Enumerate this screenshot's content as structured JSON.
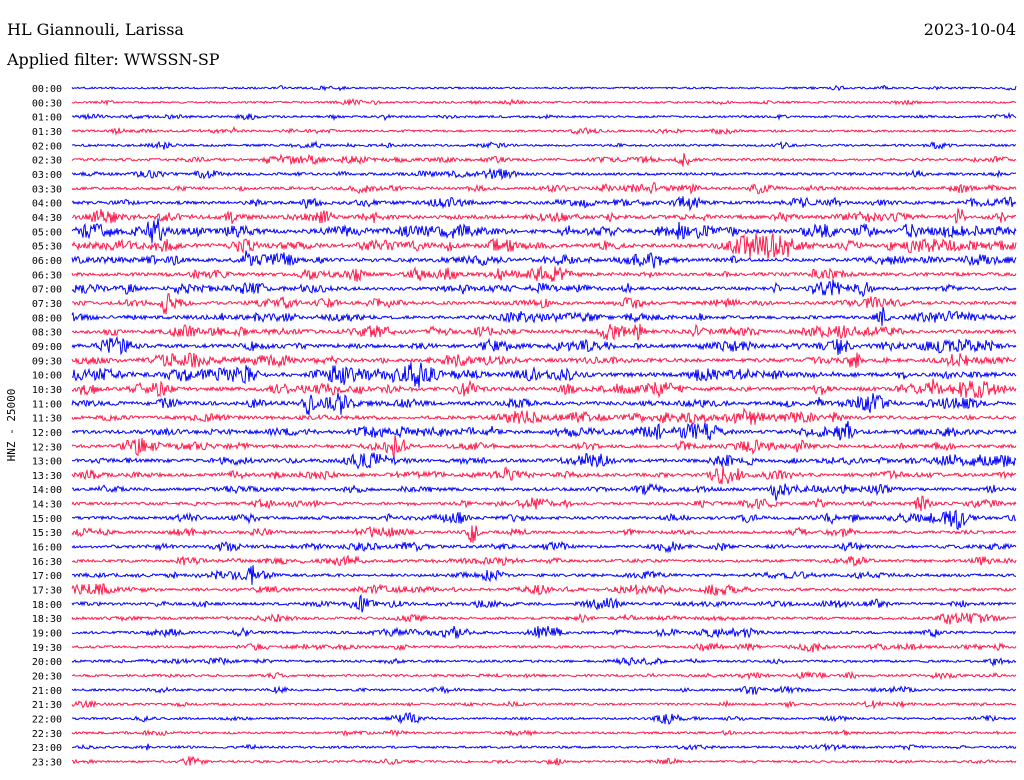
{
  "header": {
    "station": "HL Giannouli, Larissa",
    "date": "2023-10-04",
    "filter": "Applied filter: WWSSN-SP"
  },
  "chart_data": {
    "type": "line",
    "title": "HL Giannouli, Larissa",
    "ylabel": "HNZ - 25000",
    "time_labels": [
      "00:00",
      "00:30",
      "01:00",
      "01:30",
      "02:00",
      "02:30",
      "03:00",
      "03:30",
      "04:00",
      "04:30",
      "05:00",
      "05:30",
      "06:00",
      "06:30",
      "07:00",
      "07:30",
      "08:00",
      "08:30",
      "09:00",
      "09:30",
      "10:00",
      "10:30",
      "11:00",
      "11:30",
      "12:00",
      "12:30",
      "13:00",
      "13:30",
      "14:00",
      "14:30",
      "15:00",
      "15:30",
      "16:00",
      "16:30",
      "17:00",
      "17:30",
      "18:00",
      "18:30",
      "19:00",
      "19:30",
      "20:00",
      "20:30",
      "21:00",
      "21:30",
      "22:00",
      "22:30",
      "23:00",
      "23:30"
    ],
    "activity_level": [
      0.15,
      0.2,
      0.25,
      0.3,
      0.3,
      0.45,
      0.45,
      0.55,
      0.65,
      0.8,
      0.95,
      0.95,
      0.8,
      0.75,
      0.7,
      0.65,
      0.7,
      0.75,
      0.8,
      0.85,
      0.95,
      0.85,
      0.85,
      0.75,
      0.8,
      0.7,
      0.75,
      0.7,
      0.6,
      0.55,
      0.6,
      0.5,
      0.55,
      0.55,
      0.5,
      0.55,
      0.5,
      0.45,
      0.45,
      0.4,
      0.35,
      0.35,
      0.3,
      0.3,
      0.3,
      0.3,
      0.3,
      0.25
    ],
    "colors": [
      "#0000ff",
      "#ff1a4b"
    ],
    "grid": false
  }
}
